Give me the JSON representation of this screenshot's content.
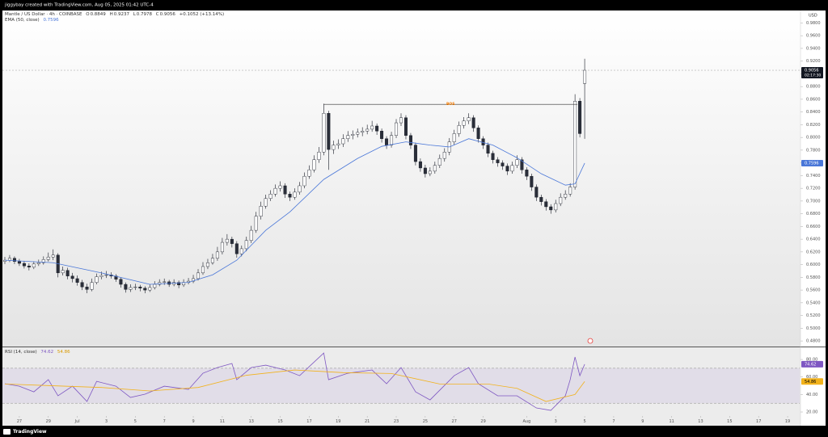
{
  "header": {
    "credit": "jiggybay created with TradingView.com, Aug 05, 2025 01:42 UTC-4"
  },
  "footer": {
    "brand": "TradingView"
  },
  "chart_data": [
    {
      "type": "candlestick",
      "title": "Mantle / US Dollar · 4h · COINBASE",
      "ohlc_labels": [
        "O",
        "H",
        "L",
        "C"
      ],
      "change": "+0.1052 (+13.14%)",
      "unit": "USD",
      "countdown": "02:17:30",
      "up_color": "#ffffff",
      "down_color": "#2a2e39",
      "outline_color": "#131722",
      "xlim": [
        -0.5,
        164.5
      ],
      "ylim": [
        0.4725,
        0.9996
      ],
      "grid": false,
      "yticks": [
        {
          "value": 0.48,
          "label": "0.4800"
        },
        {
          "value": 0.5,
          "label": "0.5000"
        },
        {
          "value": 0.52,
          "label": "0.5200"
        },
        {
          "value": 0.54,
          "label": "0.5400"
        },
        {
          "value": 0.56,
          "label": "0.5600"
        },
        {
          "value": 0.58,
          "label": "0.5800"
        },
        {
          "value": 0.6,
          "label": "0.6000"
        },
        {
          "value": 0.62,
          "label": "0.6200"
        },
        {
          "value": 0.64,
          "label": "0.6400"
        },
        {
          "value": 0.66,
          "label": "0.6600"
        },
        {
          "value": 0.68,
          "label": "0.6800"
        },
        {
          "value": 0.7,
          "label": "0.7000"
        },
        {
          "value": 0.72,
          "label": "0.7200"
        },
        {
          "value": 0.74,
          "label": "0.7400"
        },
        {
          "value": 0.76,
          "label": "0.7600"
        },
        {
          "value": 0.78,
          "label": "0.7800"
        },
        {
          "value": 0.8,
          "label": "0.8000"
        },
        {
          "value": 0.82,
          "label": "0.8200"
        },
        {
          "value": 0.84,
          "label": "0.8400"
        },
        {
          "value": 0.86,
          "label": "0.8600"
        },
        {
          "value": 0.88,
          "label": "0.8800"
        },
        {
          "value": 0.9,
          "label": "0.9000"
        },
        {
          "value": 0.92,
          "label": "0.9200"
        },
        {
          "value": 0.94,
          "label": "0.9400"
        },
        {
          "value": 0.96,
          "label": "0.9600"
        },
        {
          "value": 0.98,
          "label": "0.9800"
        }
      ],
      "open": [
        0.605,
        0.607,
        0.61,
        0.605,
        0.602,
        0.598,
        0.596,
        0.601,
        0.603,
        0.608,
        0.612,
        0.615,
        0.587,
        0.591,
        0.582,
        0.578,
        0.572,
        0.565,
        0.561,
        0.572,
        0.581,
        0.583,
        0.584,
        0.582,
        0.577,
        0.569,
        0.561,
        0.564,
        0.565,
        0.563,
        0.56,
        0.564,
        0.569,
        0.572,
        0.573,
        0.569,
        0.572,
        0.568,
        0.572,
        0.574,
        0.578,
        0.587,
        0.597,
        0.603,
        0.61,
        0.62,
        0.635,
        0.64,
        0.633,
        0.617,
        0.625,
        0.638,
        0.654,
        0.676,
        0.692,
        0.704,
        0.711,
        0.72,
        0.724,
        0.711,
        0.706,
        0.714,
        0.724,
        0.739,
        0.749,
        0.765,
        0.777,
        0.838,
        0.781,
        0.788,
        0.79,
        0.798,
        0.803,
        0.805,
        0.808,
        0.81,
        0.813,
        0.818,
        0.81,
        0.798,
        0.788,
        0.803,
        0.823,
        0.831,
        0.803,
        0.788,
        0.762,
        0.752,
        0.743,
        0.747,
        0.756,
        0.767,
        0.777,
        0.793,
        0.806,
        0.819,
        0.826,
        0.831,
        0.815,
        0.798,
        0.788,
        0.775,
        0.765,
        0.76,
        0.755,
        0.747,
        0.756,
        0.765,
        0.749,
        0.739,
        0.722,
        0.706,
        0.699,
        0.691,
        0.686,
        0.696,
        0.706,
        0.711,
        0.722,
        0.857,
        0.8849
      ],
      "high": [
        0.612,
        0.615,
        0.613,
        0.609,
        0.606,
        0.602,
        0.605,
        0.608,
        0.613,
        0.619,
        0.624,
        0.618,
        0.597,
        0.595,
        0.587,
        0.583,
        0.576,
        0.57,
        0.578,
        0.586,
        0.589,
        0.59,
        0.588,
        0.585,
        0.58,
        0.572,
        0.569,
        0.57,
        0.568,
        0.566,
        0.569,
        0.574,
        0.577,
        0.578,
        0.576,
        0.577,
        0.575,
        0.577,
        0.579,
        0.584,
        0.593,
        0.604,
        0.609,
        0.617,
        0.628,
        0.642,
        0.648,
        0.644,
        0.637,
        0.63,
        0.644,
        0.661,
        0.683,
        0.699,
        0.71,
        0.717,
        0.726,
        0.731,
        0.728,
        0.715,
        0.72,
        0.73,
        0.745,
        0.756,
        0.772,
        0.785,
        0.853,
        0.842,
        0.795,
        0.797,
        0.805,
        0.81,
        0.811,
        0.814,
        0.816,
        0.82,
        0.826,
        0.822,
        0.814,
        0.802,
        0.809,
        0.829,
        0.838,
        0.835,
        0.807,
        0.792,
        0.767,
        0.757,
        0.753,
        0.762,
        0.773,
        0.783,
        0.799,
        0.812,
        0.825,
        0.832,
        0.838,
        0.835,
        0.819,
        0.802,
        0.792,
        0.779,
        0.769,
        0.764,
        0.759,
        0.762,
        0.772,
        0.769,
        0.753,
        0.743,
        0.726,
        0.71,
        0.703,
        0.695,
        0.702,
        0.712,
        0.717,
        0.728,
        0.868,
        0.862,
        0.9237
      ],
      "low": [
        0.601,
        0.604,
        0.601,
        0.598,
        0.594,
        0.591,
        0.593,
        0.598,
        0.6,
        0.605,
        0.607,
        0.58,
        0.583,
        0.577,
        0.572,
        0.567,
        0.56,
        0.555,
        0.558,
        0.569,
        0.577,
        0.579,
        0.578,
        0.573,
        0.564,
        0.556,
        0.557,
        0.56,
        0.558,
        0.555,
        0.557,
        0.561,
        0.566,
        0.568,
        0.565,
        0.566,
        0.563,
        0.565,
        0.569,
        0.571,
        0.575,
        0.584,
        0.593,
        0.6,
        0.606,
        0.616,
        0.63,
        0.627,
        0.611,
        0.613,
        0.621,
        0.634,
        0.65,
        0.671,
        0.688,
        0.7,
        0.707,
        0.715,
        0.705,
        0.7,
        0.702,
        0.71,
        0.72,
        0.735,
        0.745,
        0.76,
        0.772,
        0.749,
        0.774,
        0.782,
        0.785,
        0.793,
        0.797,
        0.8,
        0.802,
        0.805,
        0.809,
        0.804,
        0.792,
        0.782,
        0.784,
        0.799,
        0.818,
        0.797,
        0.782,
        0.756,
        0.746,
        0.737,
        0.739,
        0.743,
        0.752,
        0.762,
        0.772,
        0.788,
        0.801,
        0.814,
        0.821,
        0.809,
        0.792,
        0.782,
        0.769,
        0.759,
        0.754,
        0.749,
        0.741,
        0.743,
        0.752,
        0.743,
        0.733,
        0.716,
        0.7,
        0.693,
        0.685,
        0.68,
        0.682,
        0.692,
        0.702,
        0.707,
        0.718,
        0.8,
        0.7978
      ],
      "close": [
        0.607,
        0.61,
        0.605,
        0.602,
        0.598,
        0.596,
        0.601,
        0.603,
        0.608,
        0.612,
        0.615,
        0.587,
        0.591,
        0.582,
        0.578,
        0.572,
        0.565,
        0.561,
        0.572,
        0.581,
        0.583,
        0.584,
        0.582,
        0.577,
        0.569,
        0.561,
        0.564,
        0.565,
        0.563,
        0.56,
        0.564,
        0.569,
        0.572,
        0.573,
        0.569,
        0.572,
        0.568,
        0.572,
        0.574,
        0.578,
        0.587,
        0.597,
        0.603,
        0.61,
        0.62,
        0.635,
        0.64,
        0.633,
        0.617,
        0.625,
        0.638,
        0.654,
        0.676,
        0.692,
        0.704,
        0.711,
        0.72,
        0.724,
        0.711,
        0.706,
        0.714,
        0.724,
        0.739,
        0.749,
        0.765,
        0.777,
        0.838,
        0.781,
        0.788,
        0.79,
        0.798,
        0.803,
        0.805,
        0.808,
        0.81,
        0.813,
        0.818,
        0.81,
        0.798,
        0.788,
        0.803,
        0.823,
        0.831,
        0.803,
        0.788,
        0.762,
        0.752,
        0.743,
        0.747,
        0.756,
        0.767,
        0.777,
        0.793,
        0.806,
        0.819,
        0.826,
        0.831,
        0.815,
        0.798,
        0.788,
        0.775,
        0.765,
        0.76,
        0.755,
        0.747,
        0.756,
        0.765,
        0.749,
        0.739,
        0.722,
        0.706,
        0.699,
        0.691,
        0.686,
        0.696,
        0.706,
        0.711,
        0.722,
        0.857,
        0.806,
        0.9056
      ],
      "series": [
        {
          "name": "EMA (50, close)",
          "color": "#4a77d8",
          "x": [
            0,
            10,
            20,
            30,
            38,
            43,
            48,
            54,
            59,
            66,
            73,
            78,
            83,
            88,
            92,
            96,
            101,
            106,
            111,
            116,
            118,
            120
          ],
          "values": [
            0.607,
            0.603,
            0.587,
            0.569,
            0.572,
            0.584,
            0.607,
            0.654,
            0.683,
            0.734,
            0.767,
            0.786,
            0.793,
            0.788,
            0.785,
            0.798,
            0.788,
            0.768,
            0.743,
            0.725,
            0.727,
            0.7596
          ]
        }
      ],
      "annotations": [
        {
          "text": "BOS",
          "value": 0.852,
          "x": [
            66,
            118.5
          ],
          "color": "#f57c00"
        }
      ]
    },
    {
      "type": "line",
      "title": "RSI (14, close)",
      "xlim": [
        -0.5,
        164.5
      ],
      "ylim": [
        15.4,
        93.9
      ],
      "band": [
        30,
        70
      ],
      "band_color": "#7e57c2",
      "yticks": [
        {
          "value": 80,
          "label": "80.00"
        },
        {
          "value": 60,
          "label": "60.00"
        },
        {
          "value": 40,
          "label": "40.00"
        },
        {
          "value": 20,
          "label": "20.00"
        }
      ],
      "xticks": [
        {
          "value": 3,
          "label": "27"
        },
        {
          "value": 9,
          "label": "29"
        },
        {
          "value": 15,
          "label": "Jul"
        },
        {
          "value": 21,
          "label": "3"
        },
        {
          "value": 27,
          "label": "5"
        },
        {
          "value": 33,
          "label": "7"
        },
        {
          "value": 39,
          "label": "9"
        },
        {
          "value": 45,
          "label": "11"
        },
        {
          "value": 51,
          "label": "13"
        },
        {
          "value": 57,
          "label": "15"
        },
        {
          "value": 63,
          "label": "17"
        },
        {
          "value": 69,
          "label": "19"
        },
        {
          "value": 75,
          "label": "21"
        },
        {
          "value": 81,
          "label": "23"
        },
        {
          "value": 87,
          "label": "25"
        },
        {
          "value": 93,
          "label": "27"
        },
        {
          "value": 99,
          "label": "29"
        },
        {
          "value": 108,
          "label": "Aug"
        },
        {
          "value": 114,
          "label": "3"
        },
        {
          "value": 120,
          "label": "5"
        },
        {
          "value": 126,
          "label": "7"
        },
        {
          "value": 132,
          "label": "9"
        },
        {
          "value": 138,
          "label": "11"
        },
        {
          "value": 144,
          "label": "13"
        },
        {
          "value": 150,
          "label": "15"
        },
        {
          "value": 156,
          "label": "17"
        },
        {
          "value": 162,
          "label": "19"
        }
      ],
      "series": [
        {
          "color": "#7e57c2",
          "x": [
            0,
            3,
            6,
            9,
            11,
            14,
            17,
            19,
            23,
            26,
            29,
            33,
            38,
            41,
            44,
            47,
            48,
            51,
            54,
            58,
            61,
            66,
            67,
            71,
            76,
            79,
            82,
            85,
            88,
            93,
            96,
            98,
            102,
            106,
            110,
            113,
            116,
            117,
            118,
            119,
            120
          ],
          "values": [
            52.3,
            49.5,
            43,
            57,
            38.5,
            49.5,
            32,
            55,
            49.5,
            36.6,
            40.3,
            49.5,
            45.8,
            64.3,
            70.8,
            75.4,
            56.9,
            70.8,
            73.5,
            68,
            61.5,
            87.4,
            56.9,
            64.3,
            68,
            52.3,
            70.8,
            43,
            33.8,
            61.5,
            70.8,
            52.3,
            38.5,
            38.5,
            24.6,
            21.8,
            38.5,
            56.9,
            82.8,
            61.5,
            74.62
          ]
        },
        {
          "color": "#f2b21b",
          "x": [
            0,
            10,
            20,
            30,
            40,
            50,
            60,
            70,
            80,
            90,
            100,
            106,
            112,
            118,
            120
          ],
          "values": [
            52,
            50,
            48,
            44,
            48,
            62,
            68,
            65,
            64,
            52,
            52,
            47,
            32,
            40,
            54.86
          ]
        }
      ]
    }
  ]
}
